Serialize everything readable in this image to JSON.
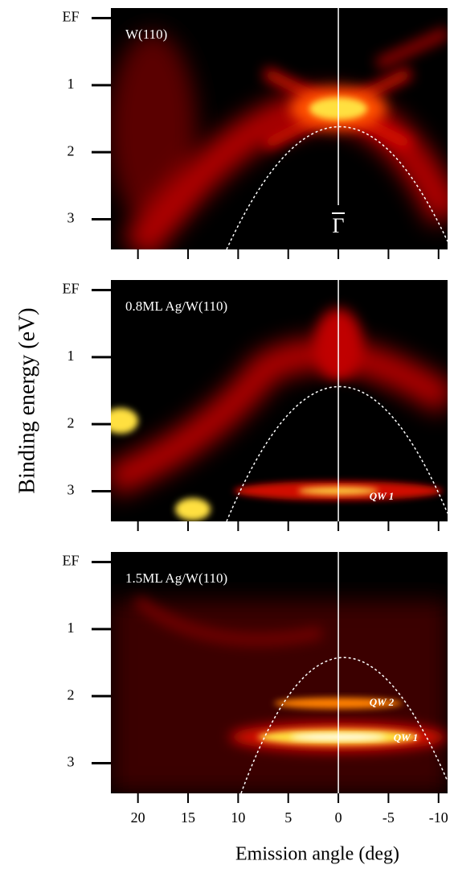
{
  "chart_data": [
    {
      "type": "heatmap",
      "sample": "W(110)",
      "point": "Γ",
      "xlim": [
        22.7,
        -10.9
      ],
      "xticks": [
        20,
        15,
        10,
        5,
        0,
        -5,
        -10
      ],
      "ylim": [
        -0.15,
        3.45
      ],
      "yticks": [
        {
          "value": 0,
          "label": "EF"
        },
        1,
        2,
        3
      ]
    },
    {
      "type": "heatmap",
      "sample": "0.8ML Ag/W(110)",
      "annotations": [
        "QW 1"
      ],
      "ylabel": "Binding energy (eV)",
      "xlim": [
        22.7,
        -10.9
      ],
      "xticks": [
        20,
        15,
        10,
        5,
        0,
        -5,
        -10
      ],
      "ylim": [
        -0.15,
        3.45
      ],
      "yticks": [
        {
          "value": 0,
          "label": "EF"
        },
        1,
        2,
        3
      ]
    },
    {
      "type": "heatmap",
      "sample": "1.5ML Ag/W(110)",
      "annotations": [
        "QW 2",
        "QW 1"
      ],
      "xlabel": "Emission angle (deg)",
      "xlim": [
        22.7,
        -10.9
      ],
      "xticks": [
        20,
        15,
        10,
        5,
        0,
        -5,
        -10
      ],
      "ylim": [
        -0.15,
        3.45
      ],
      "yticks": [
        {
          "value": 0,
          "label": "EF"
        },
        1,
        2,
        3
      ]
    }
  ]
}
